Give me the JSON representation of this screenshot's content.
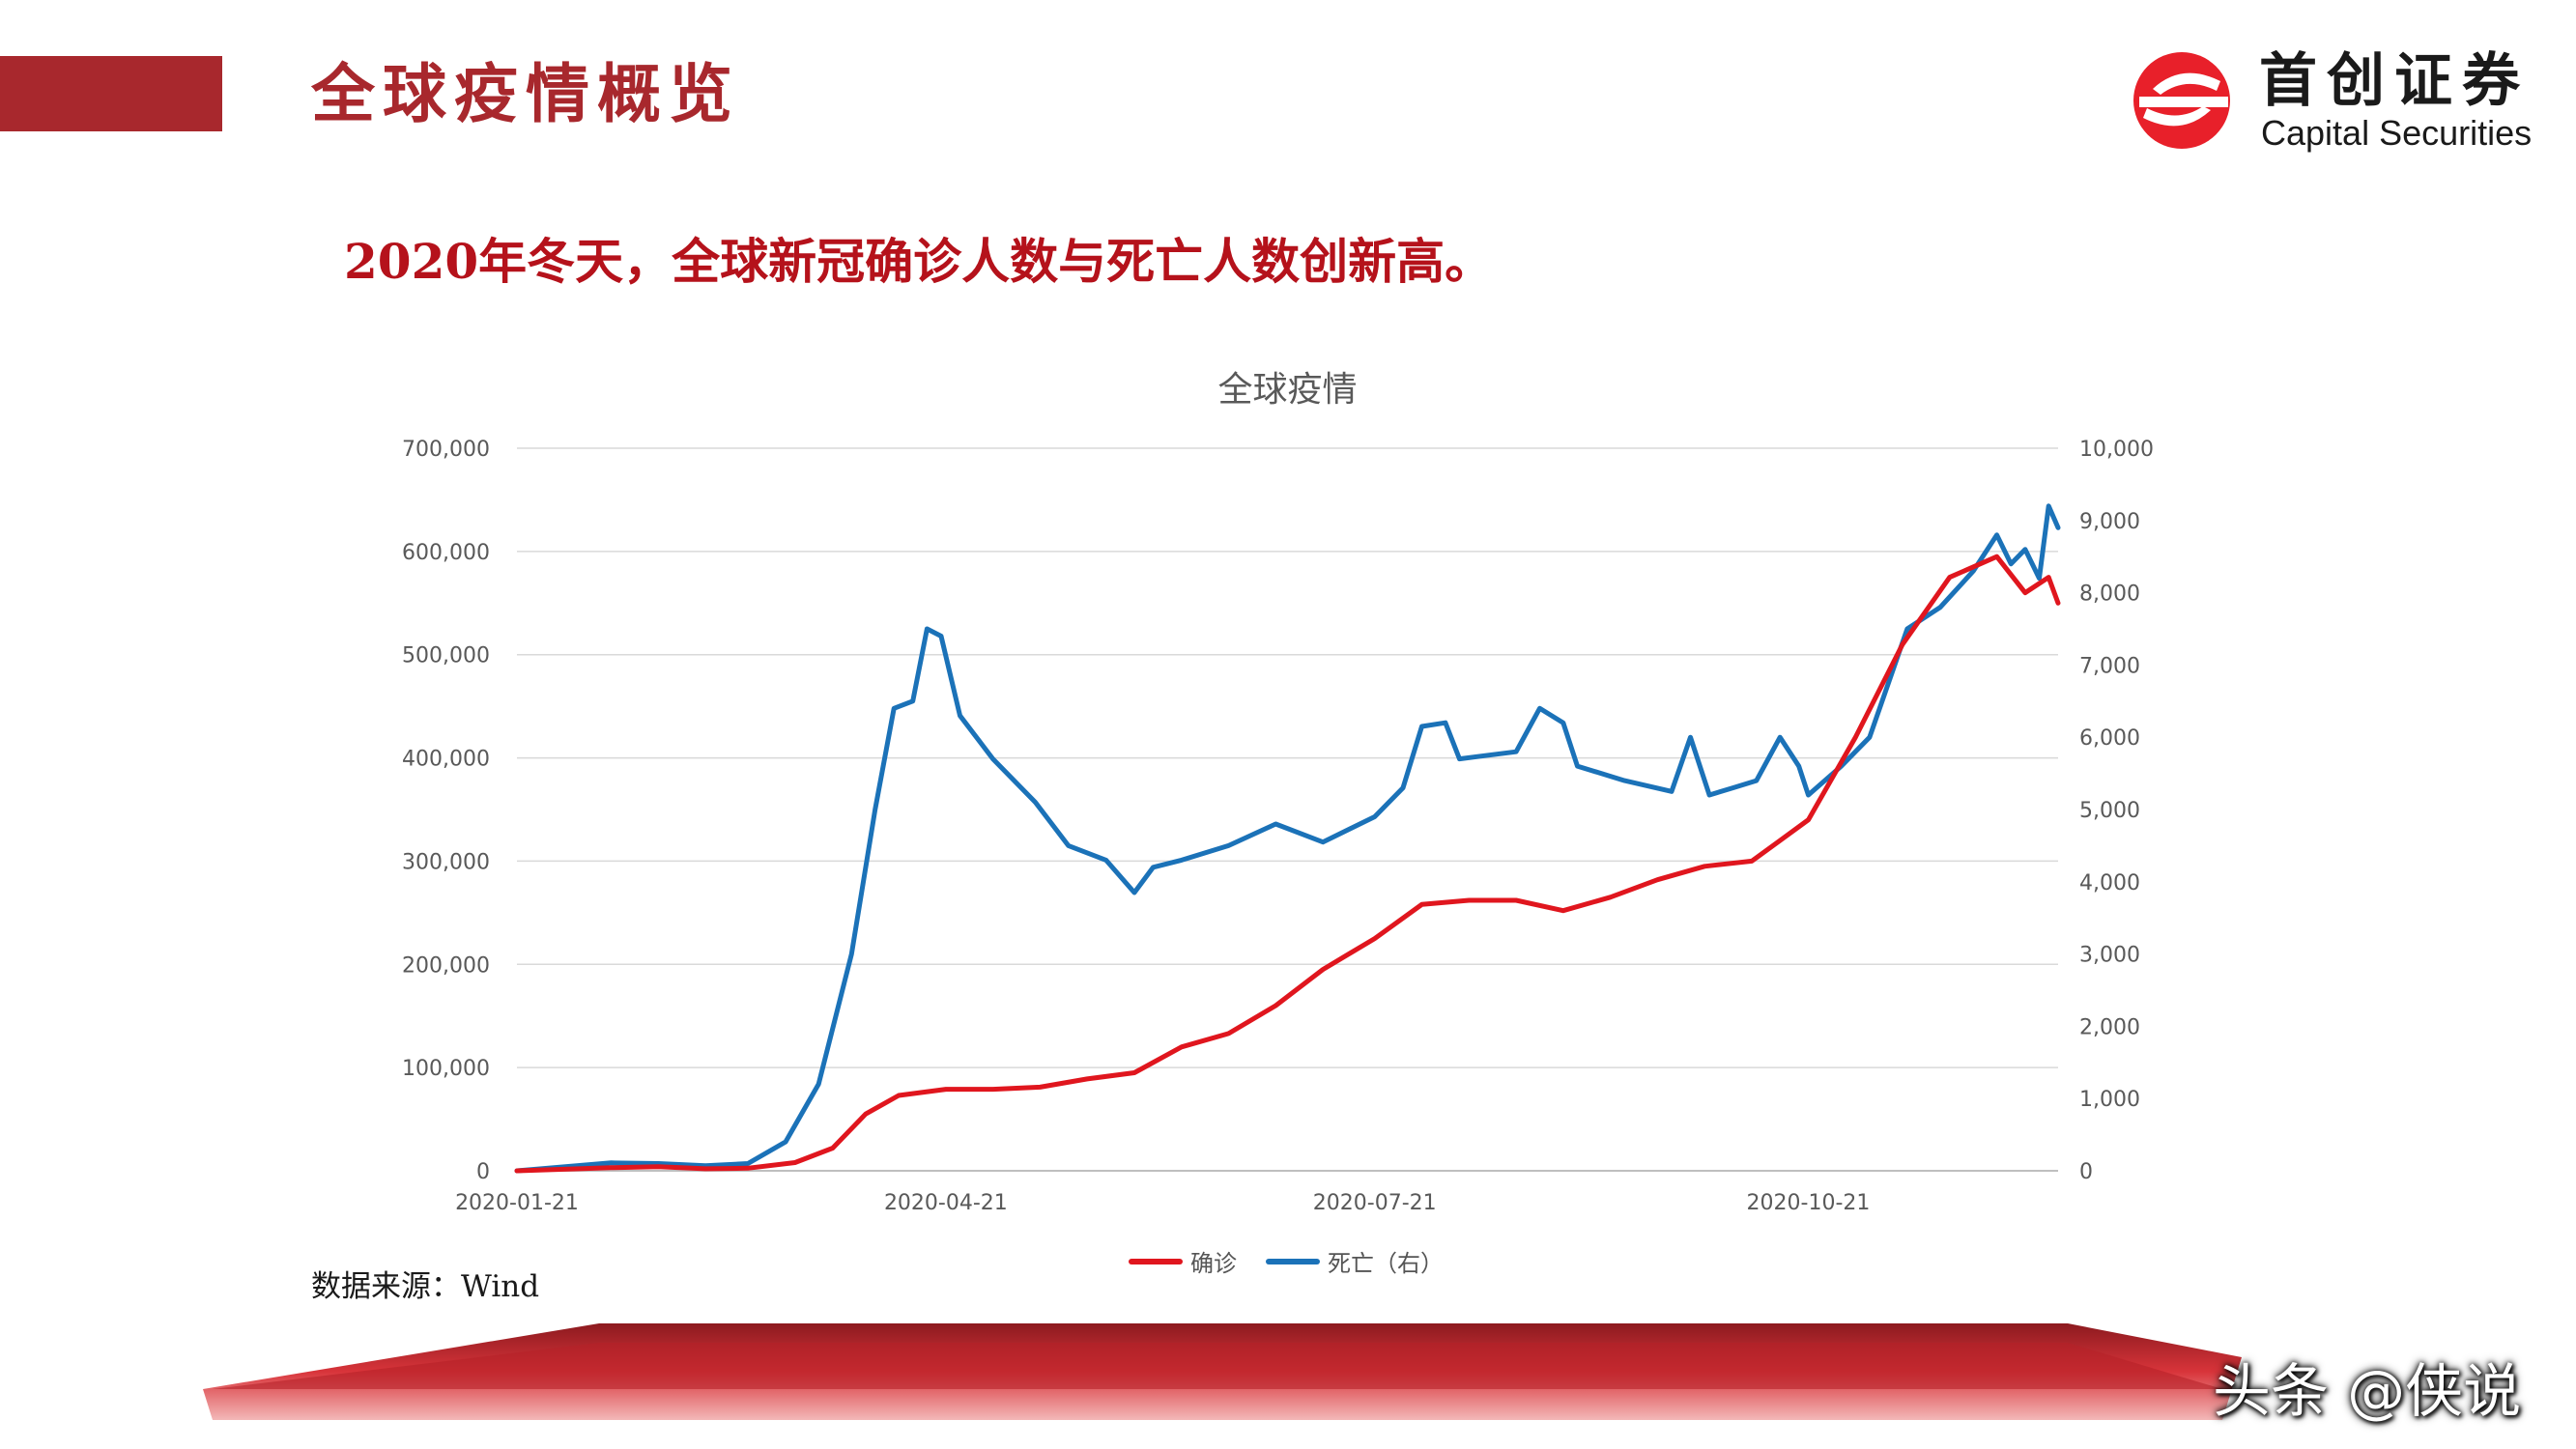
{
  "header": {
    "title": "全球疫情概览",
    "accent_color": "#a8282d",
    "logo": {
      "name_cn": "首创证券",
      "name_en": "Capital Securities",
      "mark_color": "#e8202a"
    }
  },
  "subtitle": "2020年冬天，全球新冠确诊人数与死亡人数创新高。",
  "source_note": "数据来源：Wind",
  "watermark": "头条 @侠说",
  "chart_data": {
    "type": "line",
    "title": "全球疫情",
    "x_ticks": [
      "2020-01-21",
      "2020-04-21",
      "2020-07-21",
      "2020-10-21"
    ],
    "x_range": [
      "2020-01-21",
      "2020-12-13"
    ],
    "left_axis": {
      "range": [
        0,
        700000
      ],
      "ticks": [
        "0",
        "100,000",
        "200,000",
        "300,000",
        "400,000",
        "500,000",
        "600,000",
        "700,000"
      ]
    },
    "right_axis": {
      "range": [
        0,
        10000
      ],
      "ticks": [
        "0",
        "1,000",
        "2,000",
        "3,000",
        "4,000",
        "5,000",
        "6,000",
        "7,000",
        "8,000",
        "9,000",
        "10,000"
      ]
    },
    "grid": true,
    "legend_position": "bottom",
    "series": [
      {
        "name": "确诊",
        "axis": "left",
        "color": "#e0161e",
        "points": [
          [
            "2020-01-21",
            0
          ],
          [
            "2020-02-10",
            3000
          ],
          [
            "2020-02-20",
            4000
          ],
          [
            "2020-03-01",
            2000
          ],
          [
            "2020-03-10",
            2500
          ],
          [
            "2020-03-20",
            8000
          ],
          [
            "2020-03-28",
            22000
          ],
          [
            "2020-04-04",
            55000
          ],
          [
            "2020-04-11",
            73000
          ],
          [
            "2020-04-21",
            79000
          ],
          [
            "2020-05-01",
            79000
          ],
          [
            "2020-05-11",
            81000
          ],
          [
            "2020-05-21",
            89000
          ],
          [
            "2020-05-31",
            95000
          ],
          [
            "2020-06-10",
            120000
          ],
          [
            "2020-06-20",
            133000
          ],
          [
            "2020-06-30",
            160000
          ],
          [
            "2020-07-10",
            195000
          ],
          [
            "2020-07-21",
            225000
          ],
          [
            "2020-07-31",
            258000
          ],
          [
            "2020-08-10",
            262000
          ],
          [
            "2020-08-20",
            262000
          ],
          [
            "2020-08-30",
            252000
          ],
          [
            "2020-09-09",
            265000
          ],
          [
            "2020-09-19",
            282000
          ],
          [
            "2020-09-29",
            295000
          ],
          [
            "2020-10-09",
            300000
          ],
          [
            "2020-10-15",
            320000
          ],
          [
            "2020-10-21",
            340000
          ],
          [
            "2020-10-31",
            420000
          ],
          [
            "2020-11-10",
            510000
          ],
          [
            "2020-11-20",
            575000
          ],
          [
            "2020-11-30",
            595000
          ],
          [
            "2020-12-06",
            560000
          ],
          [
            "2020-12-11",
            575000
          ],
          [
            "2020-12-13",
            550000
          ]
        ]
      },
      {
        "name": "死亡（右）",
        "axis": "right",
        "color": "#1b72b8",
        "points": [
          [
            "2020-01-21",
            0
          ],
          [
            "2020-02-10",
            110
          ],
          [
            "2020-02-20",
            100
          ],
          [
            "2020-03-01",
            70
          ],
          [
            "2020-03-10",
            100
          ],
          [
            "2020-03-18",
            400
          ],
          [
            "2020-03-25",
            1200
          ],
          [
            "2020-04-01",
            3000
          ],
          [
            "2020-04-06",
            5000
          ],
          [
            "2020-04-10",
            6400
          ],
          [
            "2020-04-14",
            6500
          ],
          [
            "2020-04-17",
            7500
          ],
          [
            "2020-04-20",
            7400
          ],
          [
            "2020-04-24",
            6300
          ],
          [
            "2020-05-01",
            5700
          ],
          [
            "2020-05-10",
            5100
          ],
          [
            "2020-05-17",
            4500
          ],
          [
            "2020-05-25",
            4300
          ],
          [
            "2020-05-31",
            3850
          ],
          [
            "2020-06-04",
            4200
          ],
          [
            "2020-06-10",
            4300
          ],
          [
            "2020-06-20",
            4500
          ],
          [
            "2020-06-30",
            4800
          ],
          [
            "2020-07-10",
            4550
          ],
          [
            "2020-07-21",
            4900
          ],
          [
            "2020-07-27",
            5300
          ],
          [
            "2020-07-31",
            6150
          ],
          [
            "2020-08-05",
            6200
          ],
          [
            "2020-08-08",
            5700
          ],
          [
            "2020-08-20",
            5800
          ],
          [
            "2020-08-25",
            6400
          ],
          [
            "2020-08-30",
            6200
          ],
          [
            "2020-09-02",
            5600
          ],
          [
            "2020-09-12",
            5400
          ],
          [
            "2020-09-22",
            5250
          ],
          [
            "2020-09-26",
            6000
          ],
          [
            "2020-09-30",
            5200
          ],
          [
            "2020-10-05",
            5300
          ],
          [
            "2020-10-10",
            5400
          ],
          [
            "2020-10-15",
            6000
          ],
          [
            "2020-10-19",
            5600
          ],
          [
            "2020-10-21",
            5200
          ],
          [
            "2020-10-28",
            5600
          ],
          [
            "2020-11-03",
            6000
          ],
          [
            "2020-11-11",
            7500
          ],
          [
            "2020-11-18",
            7800
          ],
          [
            "2020-11-25",
            8300
          ],
          [
            "2020-11-30",
            8800
          ],
          [
            "2020-12-03",
            8400
          ],
          [
            "2020-12-06",
            8600
          ],
          [
            "2020-12-09",
            8200
          ],
          [
            "2020-12-11",
            9200
          ],
          [
            "2020-12-13",
            8900
          ]
        ]
      }
    ]
  }
}
